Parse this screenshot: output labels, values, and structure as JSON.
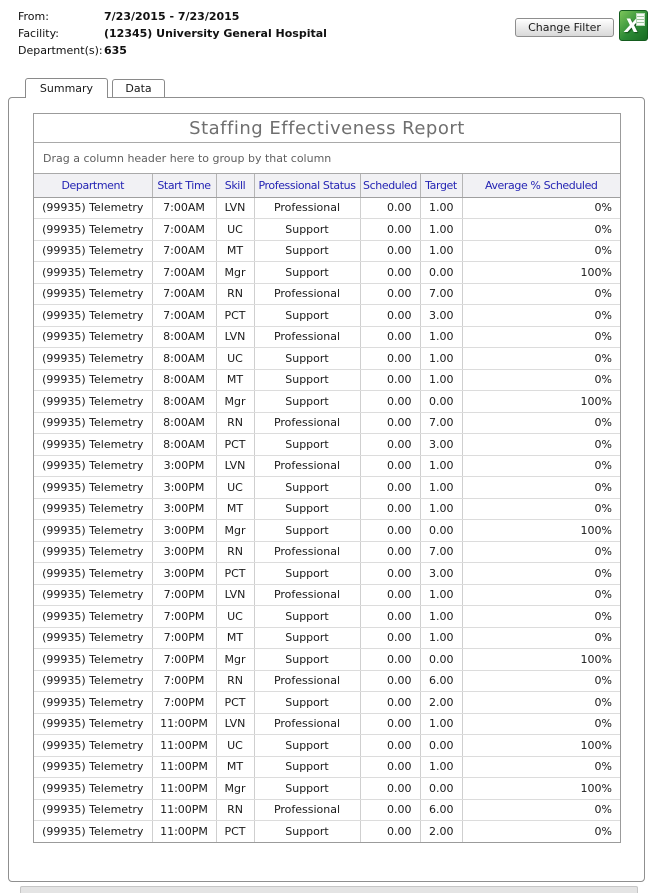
{
  "filter_info": {
    "rows": [
      {
        "label": "From:",
        "value": "7/23/2015 - 7/23/2015"
      },
      {
        "label": "Facility:",
        "value": "(12345) University General Hospital"
      },
      {
        "label": "Department(s):",
        "value": "635"
      }
    ],
    "change_filter_label": "Change Filter"
  },
  "excel_icon": {
    "name": "excel-export-icon",
    "letter": "X"
  },
  "tabs": [
    {
      "label": "Summary",
      "active": true
    },
    {
      "label": "Data",
      "active": false
    }
  ],
  "report": {
    "title": "Staffing Effectiveness Report",
    "group_hint": "Drag a column header here to group by that column",
    "columns": [
      "Department",
      "Start Time",
      "Skill",
      "Professional Status",
      "Scheduled",
      "Target",
      "Average % Scheduled"
    ],
    "rows": [
      [
        "(99935) Telemetry",
        "7:00AM",
        "LVN",
        "Professional",
        "0.00",
        "1.00",
        "0%"
      ],
      [
        "(99935) Telemetry",
        "7:00AM",
        "UC",
        "Support",
        "0.00",
        "1.00",
        "0%"
      ],
      [
        "(99935) Telemetry",
        "7:00AM",
        "MT",
        "Support",
        "0.00",
        "1.00",
        "0%"
      ],
      [
        "(99935) Telemetry",
        "7:00AM",
        "Mgr",
        "Support",
        "0.00",
        "0.00",
        "100%"
      ],
      [
        "(99935) Telemetry",
        "7:00AM",
        "RN",
        "Professional",
        "0.00",
        "7.00",
        "0%"
      ],
      [
        "(99935) Telemetry",
        "7:00AM",
        "PCT",
        "Support",
        "0.00",
        "3.00",
        "0%"
      ],
      [
        "(99935) Telemetry",
        "8:00AM",
        "LVN",
        "Professional",
        "0.00",
        "1.00",
        "0%"
      ],
      [
        "(99935) Telemetry",
        "8:00AM",
        "UC",
        "Support",
        "0.00",
        "1.00",
        "0%"
      ],
      [
        "(99935) Telemetry",
        "8:00AM",
        "MT",
        "Support",
        "0.00",
        "1.00",
        "0%"
      ],
      [
        "(99935) Telemetry",
        "8:00AM",
        "Mgr",
        "Support",
        "0.00",
        "0.00",
        "100%"
      ],
      [
        "(99935) Telemetry",
        "8:00AM",
        "RN",
        "Professional",
        "0.00",
        "7.00",
        "0%"
      ],
      [
        "(99935) Telemetry",
        "8:00AM",
        "PCT",
        "Support",
        "0.00",
        "3.00",
        "0%"
      ],
      [
        "(99935) Telemetry",
        "3:00PM",
        "LVN",
        "Professional",
        "0.00",
        "1.00",
        "0%"
      ],
      [
        "(99935) Telemetry",
        "3:00PM",
        "UC",
        "Support",
        "0.00",
        "1.00",
        "0%"
      ],
      [
        "(99935) Telemetry",
        "3:00PM",
        "MT",
        "Support",
        "0.00",
        "1.00",
        "0%"
      ],
      [
        "(99935) Telemetry",
        "3:00PM",
        "Mgr",
        "Support",
        "0.00",
        "0.00",
        "100%"
      ],
      [
        "(99935) Telemetry",
        "3:00PM",
        "RN",
        "Professional",
        "0.00",
        "7.00",
        "0%"
      ],
      [
        "(99935) Telemetry",
        "3:00PM",
        "PCT",
        "Support",
        "0.00",
        "3.00",
        "0%"
      ],
      [
        "(99935) Telemetry",
        "7:00PM",
        "LVN",
        "Professional",
        "0.00",
        "1.00",
        "0%"
      ],
      [
        "(99935) Telemetry",
        "7:00PM",
        "UC",
        "Support",
        "0.00",
        "1.00",
        "0%"
      ],
      [
        "(99935) Telemetry",
        "7:00PM",
        "MT",
        "Support",
        "0.00",
        "1.00",
        "0%"
      ],
      [
        "(99935) Telemetry",
        "7:00PM",
        "Mgr",
        "Support",
        "0.00",
        "0.00",
        "100%"
      ],
      [
        "(99935) Telemetry",
        "7:00PM",
        "RN",
        "Professional",
        "0.00",
        "6.00",
        "0%"
      ],
      [
        "(99935) Telemetry",
        "7:00PM",
        "PCT",
        "Support",
        "0.00",
        "2.00",
        "0%"
      ],
      [
        "(99935) Telemetry",
        "11:00PM",
        "LVN",
        "Professional",
        "0.00",
        "1.00",
        "0%"
      ],
      [
        "(99935) Telemetry",
        "11:00PM",
        "UC",
        "Support",
        "0.00",
        "0.00",
        "100%"
      ],
      [
        "(99935) Telemetry",
        "11:00PM",
        "MT",
        "Support",
        "0.00",
        "1.00",
        "0%"
      ],
      [
        "(99935) Telemetry",
        "11:00PM",
        "Mgr",
        "Support",
        "0.00",
        "0.00",
        "100%"
      ],
      [
        "(99935) Telemetry",
        "11:00PM",
        "RN",
        "Professional",
        "0.00",
        "6.00",
        "0%"
      ],
      [
        "(99935) Telemetry",
        "11:00PM",
        "PCT",
        "Support",
        "0.00",
        "2.00",
        "0%"
      ]
    ]
  },
  "colors": {
    "column_header_text": "#2525b4",
    "title_text": "#6f6f6f",
    "excel_green": "#2c8a35",
    "panel_border": "#8f8f8f"
  }
}
